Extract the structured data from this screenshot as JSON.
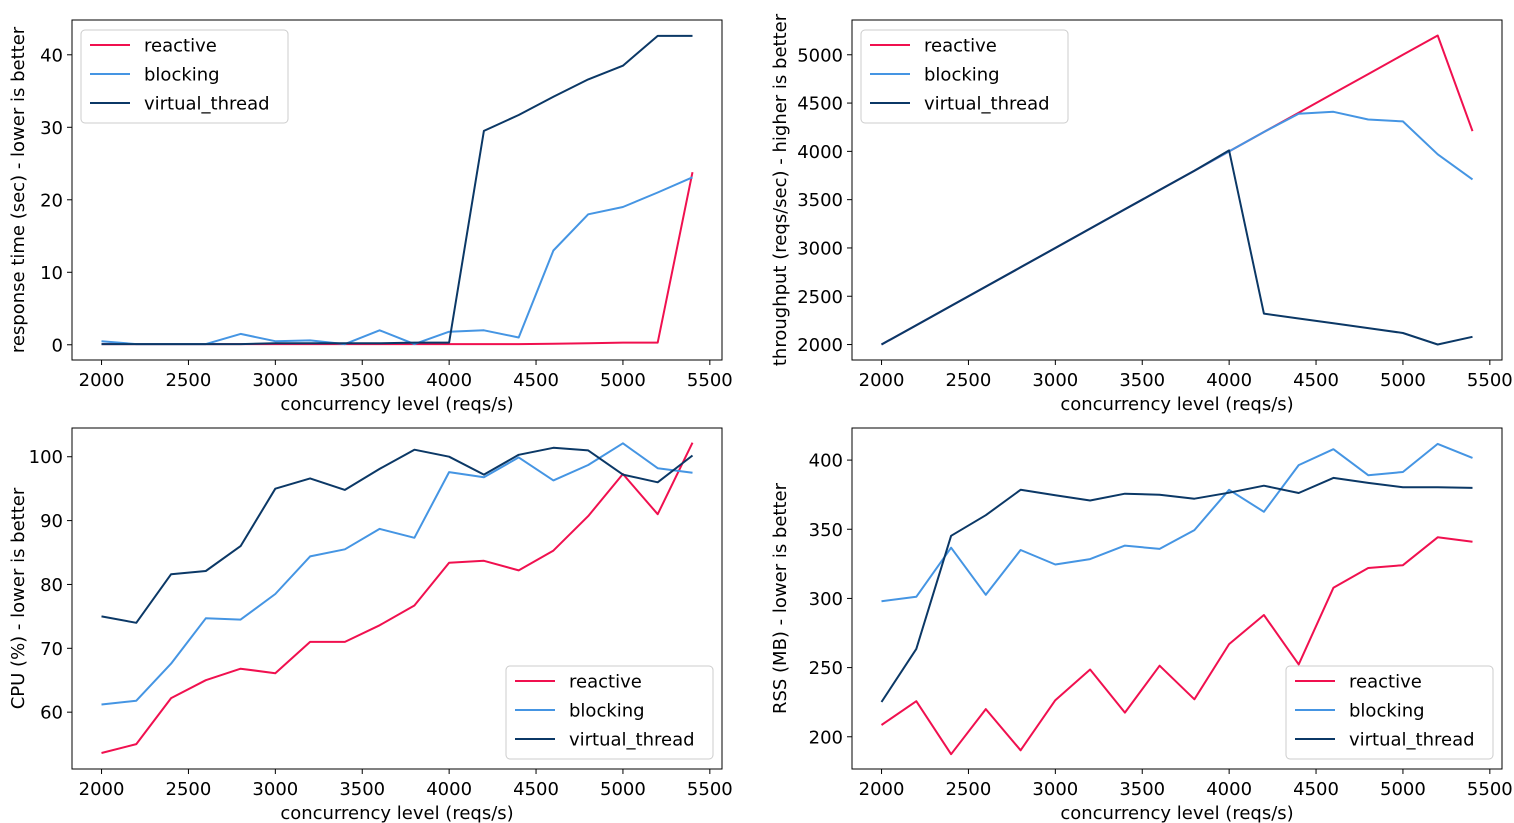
{
  "colors": {
    "reactive": "#f0104f",
    "blocking": "#4595e3",
    "virtual_thread": "#0b3866"
  },
  "chart_data": [
    {
      "type": "line",
      "xlabel": "concurrency level (reqs/s)",
      "ylabel": "response time (sec) - lower is better",
      "x": [
        2000,
        2200,
        2400,
        2600,
        2800,
        3000,
        3200,
        3400,
        3600,
        3800,
        4000,
        4200,
        4400,
        4600,
        4800,
        5000,
        5200,
        5400
      ],
      "xlim": [
        1830,
        5570
      ],
      "xticks": [
        2000,
        2500,
        3000,
        3500,
        4000,
        4500,
        5000,
        5500
      ],
      "ylim": [
        -2.1,
        44.8
      ],
      "yticks": [
        0,
        10,
        20,
        30,
        40
      ],
      "legend": "upper-left",
      "series": [
        {
          "name": "reactive",
          "values": [
            0.1,
            0.1,
            0.1,
            0.1,
            0.1,
            0.1,
            0.1,
            0.1,
            0.1,
            0.1,
            0.1,
            0.1,
            0.1,
            0.15,
            0.2,
            0.3,
            0.3,
            23.8
          ]
        },
        {
          "name": "blocking",
          "values": [
            0.5,
            0.1,
            0.1,
            0.1,
            1.5,
            0.5,
            0.6,
            0.1,
            2.0,
            0.1,
            1.8,
            2.0,
            1.0,
            13.0,
            18.0,
            19.0,
            21.0,
            23.1
          ]
        },
        {
          "name": "virtual_thread",
          "values": [
            0.1,
            0.1,
            0.1,
            0.1,
            0.1,
            0.2,
            0.2,
            0.2,
            0.2,
            0.3,
            0.3,
            29.5,
            31.7,
            34.2,
            36.6,
            38.5,
            42.6,
            42.6
          ]
        }
      ]
    },
    {
      "type": "line",
      "xlabel": "concurrency level (reqs/s)",
      "ylabel": "throughput (reqs/sec) - higher is better",
      "x": [
        2000,
        2200,
        2400,
        2600,
        2800,
        3000,
        3200,
        3400,
        3600,
        3800,
        4000,
        4200,
        4400,
        4600,
        4800,
        5000,
        5200,
        5400
      ],
      "xlim": [
        1830,
        5570
      ],
      "xticks": [
        2000,
        2500,
        3000,
        3500,
        4000,
        4500,
        5000,
        5500
      ],
      "ylim": [
        1840,
        5360
      ],
      "yticks": [
        2000,
        2500,
        3000,
        3500,
        4000,
        4500,
        5000
      ],
      "legend": "upper-left",
      "series": [
        {
          "name": "reactive",
          "values": [
            2000,
            2200,
            2400,
            2600,
            2800,
            3000,
            3200,
            3400,
            3600,
            3800,
            4000,
            4200,
            4400,
            4600,
            4800,
            5000,
            5200,
            4210
          ]
        },
        {
          "name": "blocking",
          "values": [
            2000,
            2200,
            2400,
            2600,
            2800,
            3000,
            3200,
            3400,
            3600,
            3800,
            4000,
            4200,
            4390,
            4410,
            4330,
            4310,
            3970,
            3710
          ]
        },
        {
          "name": "virtual_thread",
          "values": [
            2000,
            2200,
            2400,
            2600,
            2800,
            3000,
            3200,
            3400,
            3600,
            3800,
            4010,
            2320,
            2270,
            2220,
            2170,
            2120,
            2000,
            2080
          ]
        }
      ]
    },
    {
      "type": "line",
      "xlabel": "concurrency level (reqs/s)",
      "ylabel": "CPU (%) - lower is better",
      "x": [
        2000,
        2200,
        2400,
        2600,
        2800,
        3000,
        3200,
        3400,
        3600,
        3800,
        4000,
        4200,
        4400,
        4600,
        4800,
        5000,
        5200,
        5400
      ],
      "xlim": [
        1830,
        5570
      ],
      "xticks": [
        2000,
        2500,
        3000,
        3500,
        4000,
        4500,
        5000,
        5500
      ],
      "ylim": [
        51.1,
        104.5
      ],
      "yticks": [
        60,
        70,
        80,
        90,
        100
      ],
      "legend": "lower-right",
      "series": [
        {
          "name": "reactive",
          "values": [
            53.6,
            55.0,
            62.2,
            65.0,
            66.8,
            66.1,
            71.0,
            71.0,
            73.6,
            76.7,
            83.4,
            83.7,
            82.2,
            85.3,
            90.7,
            97.3,
            91.0,
            102.2
          ]
        },
        {
          "name": "blocking",
          "values": [
            61.2,
            61.8,
            67.6,
            74.7,
            74.5,
            78.5,
            84.4,
            85.5,
            88.7,
            87.3,
            97.6,
            96.8,
            99.9,
            96.3,
            98.7,
            102.1,
            98.2,
            97.5
          ]
        },
        {
          "name": "virtual_thread",
          "values": [
            75.0,
            74.0,
            81.6,
            82.1,
            86.0,
            95.0,
            96.6,
            94.8,
            98.1,
            101.1,
            100.0,
            97.2,
            100.3,
            101.4,
            101.0,
            97.2,
            96.0,
            100.2
          ]
        }
      ]
    },
    {
      "type": "line",
      "xlabel": "concurrency level (reqs/s)",
      "ylabel": "RSS (MB) - lower is better",
      "x": [
        2000,
        2200,
        2400,
        2600,
        2800,
        3000,
        3200,
        3400,
        3600,
        3800,
        4000,
        4200,
        4400,
        4600,
        4800,
        5000,
        5200,
        5400
      ],
      "xlim": [
        1830,
        5570
      ],
      "xticks": [
        2000,
        2500,
        3000,
        3500,
        4000,
        4500,
        5000,
        5500
      ],
      "ylim": [
        176.7,
        423.2
      ],
      "yticks": [
        200,
        250,
        300,
        350,
        400
      ],
      "legend": "lower-right",
      "series": [
        {
          "name": "reactive",
          "values": [
            208.5,
            225.7,
            187.4,
            220.0,
            190.2,
            226.4,
            248.6,
            217.5,
            251.4,
            227.1,
            267.0,
            288.0,
            252.3,
            307.7,
            322.0,
            324.0,
            344.2,
            341.0
          ]
        },
        {
          "name": "blocking",
          "values": [
            298.0,
            301.2,
            336.7,
            302.6,
            335.0,
            324.5,
            328.4,
            338.2,
            335.8,
            349.4,
            378.5,
            362.6,
            396.4,
            407.9,
            389.1,
            391.4,
            411.7,
            401.6
          ]
        },
        {
          "name": "virtual_thread",
          "values": [
            225.1,
            263.5,
            345.3,
            360.2,
            378.5,
            374.6,
            370.8,
            375.7,
            375.0,
            372.1,
            376.4,
            381.5,
            376.2,
            387.1,
            383.5,
            380.4,
            380.4,
            379.9
          ]
        }
      ]
    }
  ]
}
